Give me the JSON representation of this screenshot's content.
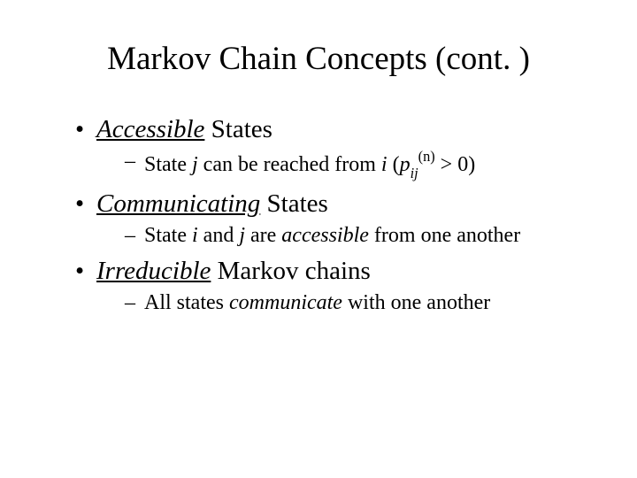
{
  "title": "Markov Chain Concepts (cont. )",
  "bullets": [
    {
      "term": "Accessible",
      "suffix": " States",
      "sub_prefix": "State ",
      "sub_var1": "j",
      "sub_mid1": " can be reached from ",
      "sub_var2": "i",
      "sub_mid2": " (",
      "sub_p": "p",
      "sub_ij": "ij",
      "sub_n": "(n)",
      "sub_end": " > 0)"
    },
    {
      "term": "Communicating",
      "suffix": " States",
      "sub_prefix": "State ",
      "sub_var1": "i",
      "sub_mid1": " and ",
      "sub_var2": "j",
      "sub_mid2": " are ",
      "sub_word": "accessible",
      "sub_end": " from one another"
    },
    {
      "term": "Irreducible",
      "suffix": " Markov chains",
      "sub_prefix": "All states ",
      "sub_word": "communicate",
      "sub_end": " with one another"
    }
  ]
}
